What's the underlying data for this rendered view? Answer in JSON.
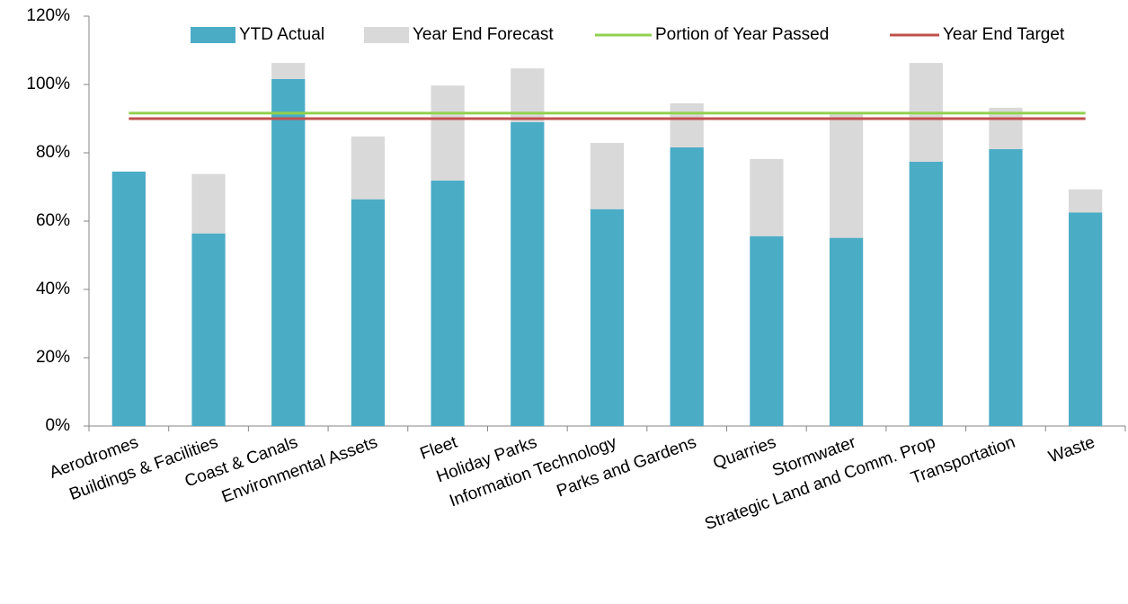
{
  "chart_data": {
    "type": "bar",
    "categories": [
      "Aerodromes",
      "Buildings & Facilities",
      "Coast & Canals",
      "Environmental Assets",
      "Fleet",
      "Holiday Parks",
      "Information Technology",
      "Parks and Gardens",
      "Quarries",
      "Stormwater",
      "Strategic Land and Comm. Prop",
      "Transportation",
      "Waste"
    ],
    "series": [
      {
        "name": "YTD Actual",
        "type": "bar",
        "color": "#4bacc6",
        "values": [
          74.5,
          56.4,
          101.6,
          66.4,
          71.9,
          89.0,
          63.5,
          81.6,
          55.6,
          55.1,
          77.4,
          81.1,
          62.5
        ]
      },
      {
        "name": "Year End Forecast",
        "type": "bar",
        "color": "#d9d9d9",
        "values": [
          0,
          17.4,
          4.7,
          18.4,
          27.8,
          15.7,
          19.4,
          12.9,
          22.6,
          36.8,
          28.9,
          12.1,
          6.8
        ]
      },
      {
        "name": "Portion of Year Passed",
        "type": "line",
        "color": "#92d050",
        "values": [
          91.6,
          91.6,
          91.6,
          91.6,
          91.6,
          91.6,
          91.6,
          91.6,
          91.6,
          91.6,
          91.6,
          91.6,
          91.6
        ]
      },
      {
        "name": "Year End Target",
        "type": "line",
        "color": "#c0504d",
        "values": [
          90,
          90,
          90,
          90,
          90,
          90,
          90,
          90,
          90,
          90,
          90,
          90,
          90
        ]
      }
    ],
    "stacked": true,
    "ylim": [
      0,
      120
    ],
    "yticks": [
      {
        "value": 0,
        "label": "0%"
      },
      {
        "value": 20,
        "label": "20%"
      },
      {
        "value": 40,
        "label": "40%"
      },
      {
        "value": 60,
        "label": "60%"
      },
      {
        "value": 80,
        "label": "80%"
      },
      {
        "value": 100,
        "label": "100%"
      },
      {
        "value": 120,
        "label": "120%"
      }
    ],
    "legend": "top"
  }
}
